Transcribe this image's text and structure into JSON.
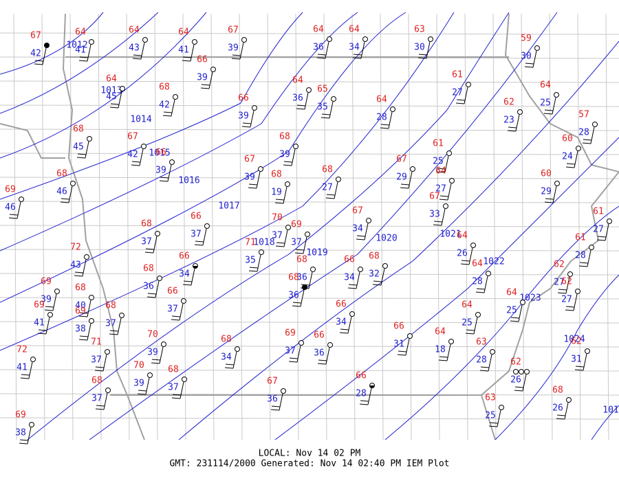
{
  "stations": [
    {
      "temp": 67,
      "dew": 42
    },
    {
      "temp": 64,
      "dew": 41
    },
    {
      "temp": 64,
      "dew": 43
    },
    {
      "temp": 64,
      "dew": 41
    },
    {
      "temp": 67,
      "dew": 39
    },
    {
      "temp": 64,
      "dew": 36
    },
    {
      "temp": 64,
      "dew": 34
    },
    {
      "temp": 63,
      "dew": 30
    },
    {
      "temp": 59,
      "dew": 30
    },
    {
      "temp": 66,
      "dew": 39
    },
    {
      "temp": 64,
      "dew": 45
    },
    {
      "temp": 68,
      "dew": 42
    },
    {
      "temp": 64,
      "dew": 36
    },
    {
      "temp": 65,
      "dew": 35
    },
    {
      "temp": 61,
      "dew": 27
    },
    {
      "temp": 66,
      "dew": 39
    },
    {
      "temp": 64,
      "dew": 28
    },
    {
      "temp": 62,
      "dew": 23
    },
    {
      "temp": 64,
      "dew": 25
    },
    {
      "temp": 57,
      "dew": 28
    },
    {
      "temp": 68,
      "dew": 45
    },
    {
      "temp": 67,
      "dew": 42
    },
    {
      "temp": 66,
      "dew": 39
    },
    {
      "temp": 68,
      "dew": 39
    },
    {
      "temp": 61,
      "dew": 25
    },
    {
      "temp": 60,
      "dew": 24
    },
    {
      "temp": 67,
      "dew": 39
    },
    {
      "temp": 68,
      "dew": 19
    },
    {
      "temp": 68,
      "dew": 27
    },
    {
      "temp": 67,
      "dew": 29
    },
    {
      "temp": 64,
      "dew": 27
    },
    {
      "temp": 60,
      "dew": 29
    },
    {
      "temp": 68,
      "dew": 46
    },
    {
      "temp": 69,
      "dew": 46
    },
    {
      "temp": 67,
      "dew": 33
    },
    {
      "temp": 66,
      "dew": 37
    },
    {
      "temp": 68,
      "dew": 37
    },
    {
      "temp": 70,
      "dew": 37
    },
    {
      "temp": 69,
      "dew": 37
    },
    {
      "temp": 67,
      "dew": 34
    },
    {
      "temp": 61,
      "dew": 27
    },
    {
      "temp": 71,
      "dew": 35
    },
    {
      "temp": 72,
      "dew": 43
    },
    {
      "temp": 61,
      "dew": 28
    },
    {
      "temp": 64,
      "dew": 26
    },
    {
      "temp": 66,
      "dew": 34
    },
    {
      "temp": 68,
      "dew": 36
    },
    {
      "temp": 68,
      "dew": 36
    },
    {
      "temp": 68,
      "dew": 36
    },
    {
      "temp": 66,
      "dew": 34
    },
    {
      "temp": 68,
      "dew": 32
    },
    {
      "temp": 64,
      "dew": 28
    },
    {
      "temp": 62,
      "dew": 27
    },
    {
      "temp": 62,
      "dew": 27
    },
    {
      "temp": 66,
      "dew": 37
    },
    {
      "temp": 69,
      "dew": 39
    },
    {
      "temp": 68,
      "dew": 40
    },
    {
      "temp": 69,
      "dew": 41
    },
    {
      "temp": 69,
      "dew": 38
    },
    {
      "temp": 68,
      "dew": 37
    },
    {
      "temp": 66,
      "dew": 34
    },
    {
      "temp": 64,
      "dew": 25
    },
    {
      "temp": 64,
      "dew": 25
    },
    {
      "temp": 66,
      "dew": 31
    },
    {
      "temp": 70,
      "dew": 39
    },
    {
      "temp": 71,
      "dew": 37
    },
    {
      "temp": 69,
      "dew": 37
    },
    {
      "temp": 66,
      "dew": 36
    },
    {
      "temp": 64,
      "dew": 18
    },
    {
      "temp": 63,
      "dew": 28
    },
    {
      "temp": 62,
      "dew": 31
    },
    {
      "temp": 72,
      "dew": 41
    },
    {
      "temp": 68,
      "dew": 34
    },
    {
      "temp": 70,
      "dew": 39
    },
    {
      "temp": 68,
      "dew": 37
    },
    {
      "temp": 68,
      "dew": 37
    },
    {
      "temp": 66,
      "dew": 28
    },
    {
      "temp": 67,
      "dew": 36
    },
    {
      "temp": 62,
      "dew": 26
    },
    {
      "temp": 68,
      "dew": 26
    },
    {
      "temp": 63,
      "dew": 25
    },
    {
      "temp": 69,
      "dew": 38
    }
  ],
  "isobars": [
    "1012",
    "1013",
    "1014",
    "1015",
    "1016",
    "1017",
    "1018",
    "1019",
    "1020",
    "1021",
    "1022",
    "1023",
    "1024",
    "101"
  ],
  "footer": {
    "local": "LOCAL: Nov 14 02 PM",
    "gmt": "GMT: 231114/2000 Generated: Nov 14 02:40 PM IEM Plot"
  }
}
